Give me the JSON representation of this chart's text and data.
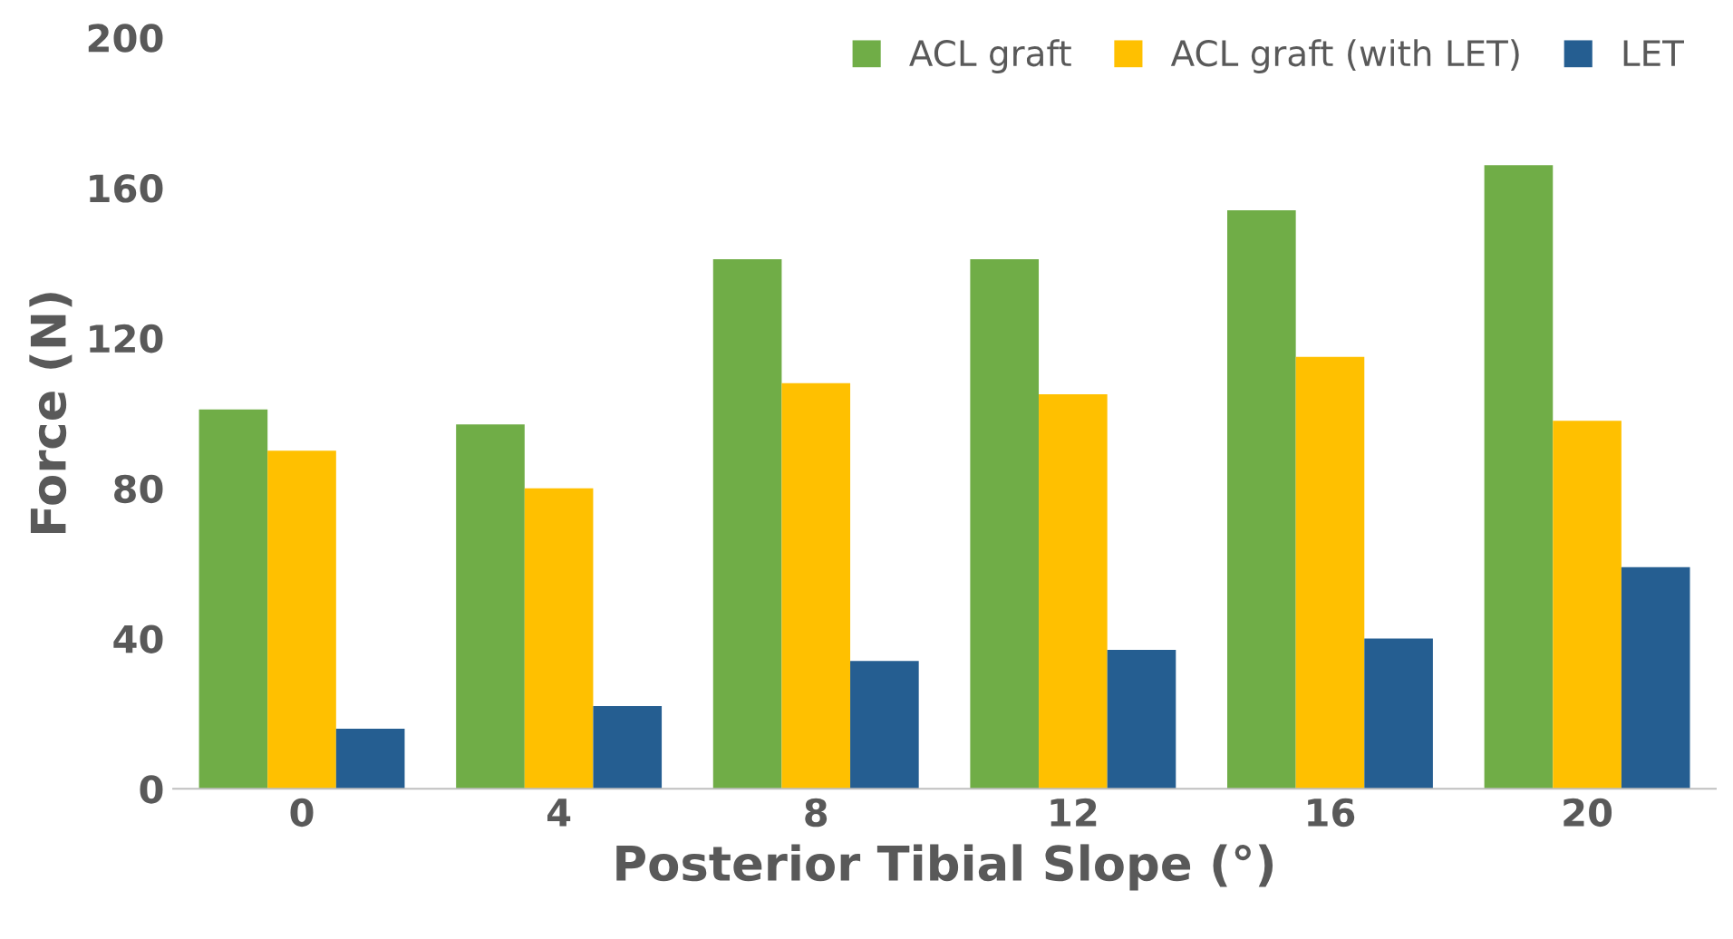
{
  "chart_data": {
    "type": "bar",
    "xlabel": "Posterior Tibial Slope (°)",
    "ylabel": "Force (N)",
    "categories": [
      "0",
      "4",
      "8",
      "12",
      "16",
      "20"
    ],
    "series": [
      {
        "name": "ACL graft",
        "color": "#70ad47",
        "values": [
          101,
          97,
          141,
          141,
          154,
          166
        ]
      },
      {
        "name": "ACL graft (with LET)",
        "color": "#ffc000",
        "values": [
          90,
          80,
          108,
          105,
          115,
          98
        ]
      },
      {
        "name": "LET",
        "color": "#255e91",
        "values": [
          16,
          22,
          34,
          37,
          40,
          59
        ]
      }
    ],
    "ylim": [
      0,
      200
    ],
    "yticks": [
      0,
      40,
      80,
      120,
      160,
      200
    ],
    "grid": false,
    "legend": "top right"
  }
}
